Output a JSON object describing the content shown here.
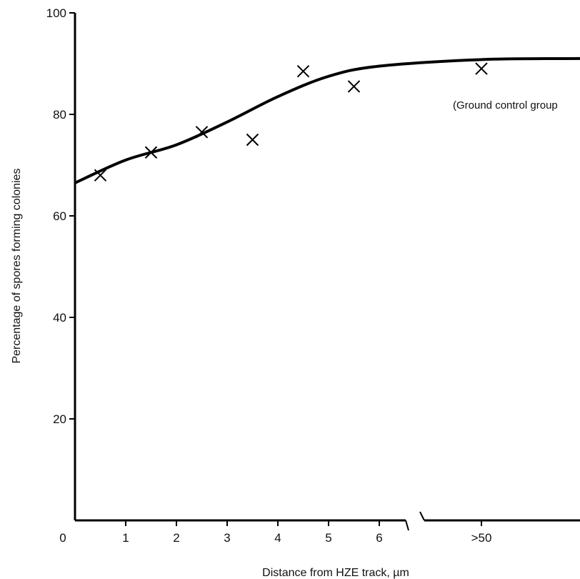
{
  "chart_data": {
    "type": "scatter",
    "title": "",
    "xlabel": "Distance from HZE track, µm",
    "ylabel": "Percentage of spores forming colonies",
    "ylim": [
      0,
      100
    ],
    "xlim": [
      0,
      7.5
    ],
    "grid": false,
    "axis_break": "between 6 and >50",
    "x_ticks": [
      "0",
      "1",
      "2",
      "3",
      "4",
      "5",
      "6",
      ">50"
    ],
    "y_ticks": [
      "20",
      "40",
      "60",
      "80",
      "100"
    ],
    "x_tick_values": [
      1,
      2,
      3,
      4,
      5,
      6
    ],
    "y_tick_values": [
      0,
      20,
      40,
      60,
      80,
      100
    ],
    "series": [
      {
        "marker": "x",
        "x": [
          0.5,
          1.5,
          2.5,
          3.5,
          4.5,
          5.5,
          ">50"
        ],
        "y": [
          68,
          72.5,
          76.5,
          75,
          88.5,
          85.5,
          89
        ]
      }
    ],
    "fit_curve": {
      "style": "smooth line",
      "x": [
        0,
        1,
        2,
        3,
        4,
        5,
        6,
        ">50",
        "end"
      ],
      "y": [
        66.5,
        71,
        74,
        78.5,
        83.5,
        87.5,
        89.5,
        90.8,
        91
      ]
    },
    "annotations": [
      "(Ground control group"
    ]
  }
}
